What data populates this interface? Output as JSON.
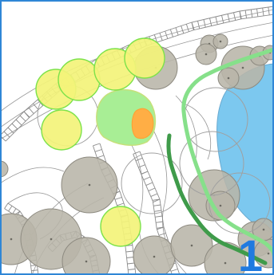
{
  "map": {
    "page_number": "1",
    "colors": {
      "frame": "#2f86d6",
      "page_number": "#1f7ae0",
      "water": "#7cc8ef",
      "existing_tree": "#b8b5a8",
      "existing_tree_stroke": "#8d8a80",
      "proposed_tree": "#f3f37a",
      "proposed_tree_stroke": "#7ce24a",
      "shrub_mass": "#a8ee95",
      "accent_shrub": "#ffae45",
      "path_light_green": "#86e08a",
      "path_dark_green": "#3f9b4a",
      "linework": "#8a8a8a"
    },
    "features": [
      "pond",
      "existing-trees",
      "proposed-trees",
      "shrub-bed",
      "accent-shrub",
      "garden-paths",
      "boardwalk-edges",
      "contour-lines"
    ]
  }
}
